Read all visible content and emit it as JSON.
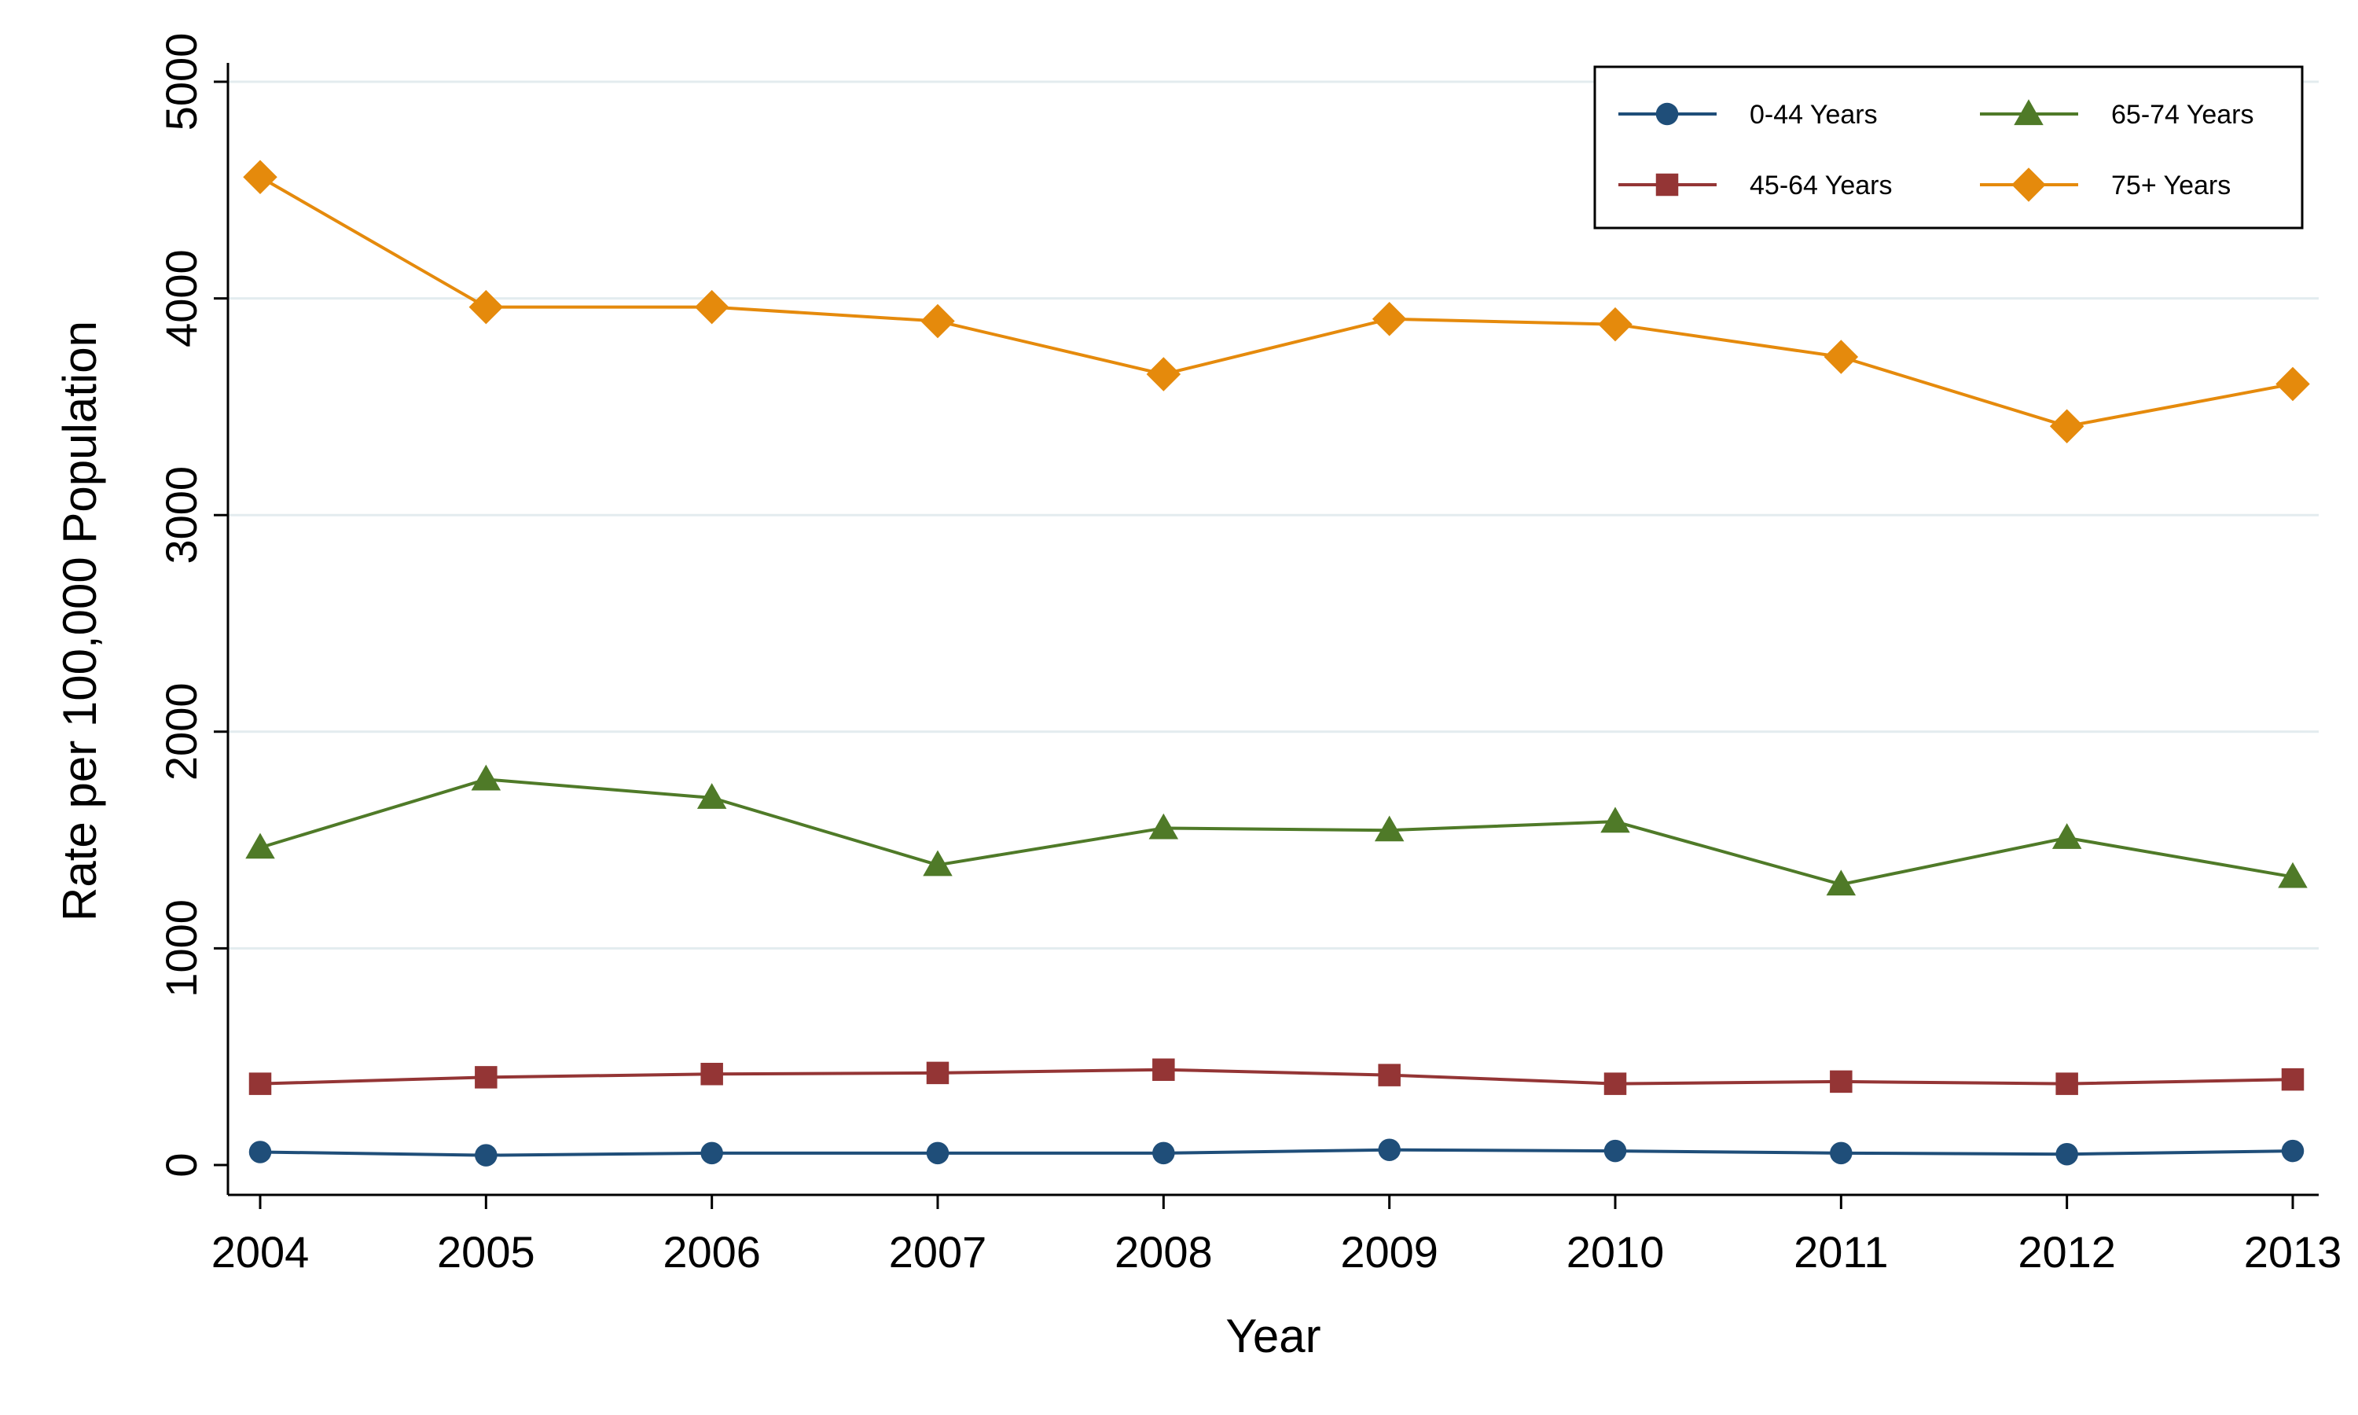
{
  "chart_data": {
    "type": "line",
    "title": "",
    "xlabel": "Year",
    "ylabel": "Rate per 100,000 Population",
    "categories": [
      "2004",
      "2005",
      "2006",
      "2007",
      "2008",
      "2009",
      "2010",
      "2011",
      "2012",
      "2013"
    ],
    "ylim": [
      0,
      5000
    ],
    "yticks": [
      "0",
      "1000",
      "2000",
      "3000",
      "4000",
      "5000"
    ],
    "grid": true,
    "legend_position": "top-right",
    "series": [
      {
        "name": "0-44 Years",
        "marker": "circle",
        "color": "#1f4e79",
        "values": [
          60,
          45,
          55,
          55,
          55,
          70,
          65,
          55,
          50,
          65
        ]
      },
      {
        "name": "45-64 Years",
        "marker": "square",
        "color": "#943535",
        "values": [
          375,
          405,
          420,
          425,
          440,
          415,
          375,
          385,
          375,
          395
        ]
      },
      {
        "name": "65-74 Years",
        "marker": "triangle",
        "color": "#4f7a28",
        "values": [
          1465,
          1780,
          1695,
          1385,
          1555,
          1545,
          1585,
          1295,
          1510,
          1330
        ]
      },
      {
        "name": "75+ Years",
        "marker": "diamond",
        "color": "#e58a0c",
        "values": [
          4560,
          3960,
          3960,
          3895,
          3650,
          3905,
          3880,
          3730,
          3410,
          3605
        ]
      }
    ]
  }
}
